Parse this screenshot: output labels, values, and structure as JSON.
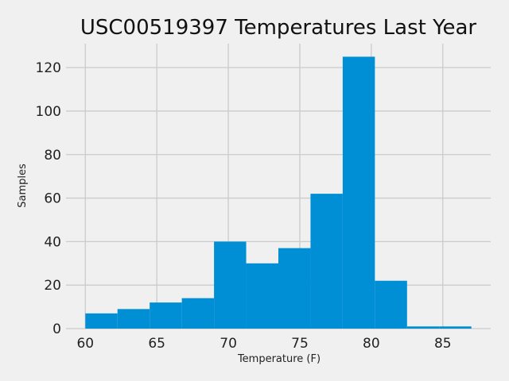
{
  "chart_data": {
    "type": "bar",
    "title": "USC00519397 Temperatures Last Year",
    "xlabel": "Temperature (F)",
    "ylabel": "Samples",
    "bins": [
      {
        "start": 60.0,
        "end": 62.25,
        "value": 7
      },
      {
        "start": 62.25,
        "end": 64.5,
        "value": 9
      },
      {
        "start": 64.5,
        "end": 66.75,
        "value": 12
      },
      {
        "start": 66.75,
        "end": 69.0,
        "value": 14
      },
      {
        "start": 69.0,
        "end": 71.25,
        "value": 40
      },
      {
        "start": 71.25,
        "end": 73.5,
        "value": 30
      },
      {
        "start": 73.5,
        "end": 75.75,
        "value": 37
      },
      {
        "start": 75.75,
        "end": 78.0,
        "value": 62
      },
      {
        "start": 78.0,
        "end": 80.25,
        "value": 125
      },
      {
        "start": 80.25,
        "end": 82.5,
        "value": 22
      },
      {
        "start": 82.5,
        "end": 84.75,
        "value": 1
      },
      {
        "start": 84.75,
        "end": 87.0,
        "value": 1
      }
    ],
    "xticks": [
      60,
      65,
      70,
      75,
      80,
      85
    ],
    "yticks": [
      0,
      20,
      40,
      60,
      80,
      100,
      120
    ],
    "xlim": [
      58.65,
      88.35
    ],
    "ylim": [
      0,
      131
    ],
    "grid": true,
    "bar_color": "#008fd5",
    "grid_color": "#cbcbcb",
    "background": "#f0f0f0"
  }
}
